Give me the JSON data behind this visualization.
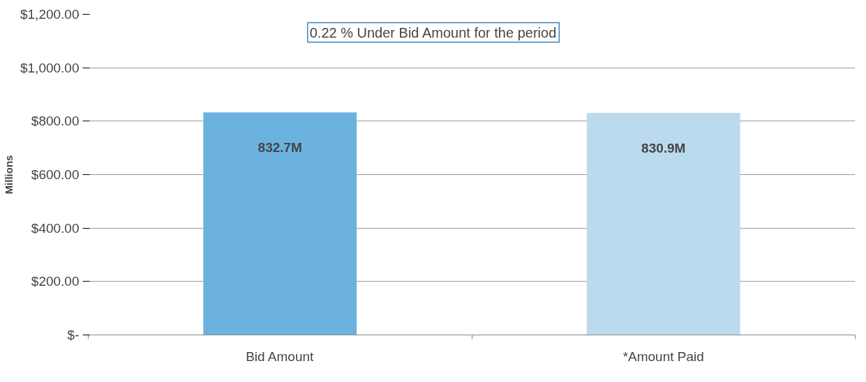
{
  "chart_data": {
    "type": "bar",
    "ylabel": "Millions",
    "categories": [
      "Bid Amount",
      "*Amount Paid"
    ],
    "values": [
      832.7,
      830.9
    ],
    "colors": [
      "#6cb2df",
      "#bcdaed"
    ],
    "value_labels": [
      "832.7M",
      "830.9M"
    ],
    "ylim": [
      0,
      1200
    ],
    "yticks": [
      {
        "value": 0,
        "label": "$-"
      },
      {
        "value": 200,
        "label": "$200.00"
      },
      {
        "value": 400,
        "label": "$400.00"
      },
      {
        "value": 600,
        "label": "$600.00"
      },
      {
        "value": 800,
        "label": "$800.00"
      },
      {
        "value": 1000,
        "label": "$1,000.00"
      },
      {
        "value": 1200,
        "label": "$1,200.00"
      }
    ],
    "grid": "y",
    "annotations": [
      "0.22 % Under Bid Amount for the period"
    ]
  }
}
